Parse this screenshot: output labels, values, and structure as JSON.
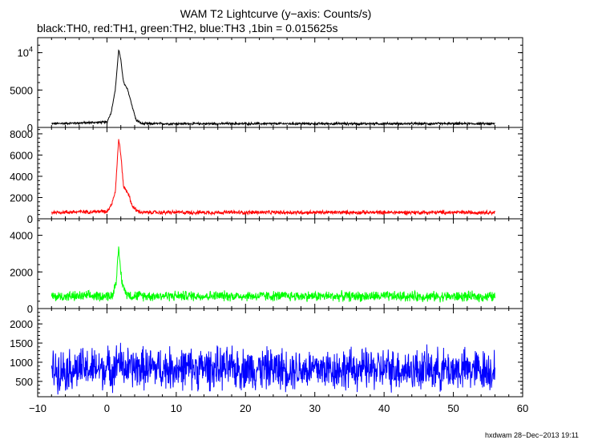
{
  "title": "WAM T2 Lightcurve (y−axis: Counts/s)",
  "subtitle": "black:TH0, red:TH1, green:TH2, blue:TH3 ,1bin = 0.015625s",
  "footer": "hxdwam 28−Dec−2013 19:11",
  "chart_data": [
    {
      "type": "line",
      "series": [
        {
          "name": "TH0",
          "color": "#000000"
        }
      ],
      "xlim": [
        -10,
        60
      ],
      "ylim": [
        0,
        12000
      ],
      "x_ticks": [
        "−10",
        "0",
        "10",
        "20",
        "30",
        "40",
        "50",
        "60"
      ],
      "y_ticks": [
        "0",
        "5000",
        "10⁴"
      ],
      "y_tick_values": [
        0,
        5000,
        10000
      ],
      "profile": [
        [
          -8,
          500
        ],
        [
          0,
          700
        ],
        [
          0.6,
          2000
        ],
        [
          1.2,
          5000
        ],
        [
          1.7,
          10500
        ],
        [
          2.0,
          9000
        ],
        [
          2.4,
          6000
        ],
        [
          3.0,
          5000
        ],
        [
          3.6,
          3000
        ],
        [
          4.2,
          1000
        ],
        [
          5,
          500
        ],
        [
          56,
          500
        ]
      ]
    },
    {
      "type": "line",
      "series": [
        {
          "name": "TH1",
          "color": "#ff0000"
        }
      ],
      "xlim": [
        -10,
        60
      ],
      "ylim": [
        0,
        8600
      ],
      "x_ticks": [
        "−10",
        "0",
        "10",
        "20",
        "30",
        "40",
        "50",
        "60"
      ],
      "y_ticks": [
        "0",
        "2000",
        "4000",
        "6000",
        "8000"
      ],
      "y_tick_values": [
        0,
        2000,
        4000,
        6000,
        8000
      ],
      "profile": [
        [
          -8,
          600
        ],
        [
          0,
          700
        ],
        [
          0.6,
          1300
        ],
        [
          1.2,
          2500
        ],
        [
          1.7,
          7600
        ],
        [
          2.0,
          6000
        ],
        [
          2.4,
          3000
        ],
        [
          3.0,
          2500
        ],
        [
          3.6,
          1300
        ],
        [
          4.2,
          800
        ],
        [
          5,
          600
        ],
        [
          56,
          600
        ]
      ]
    },
    {
      "type": "line",
      "series": [
        {
          "name": "TH2",
          "color": "#00ff00"
        }
      ],
      "xlim": [
        -10,
        60
      ],
      "ylim": [
        0,
        4900
      ],
      "x_ticks": [
        "−10",
        "0",
        "10",
        "20",
        "30",
        "40",
        "50",
        "60"
      ],
      "y_ticks": [
        "0",
        "2000",
        "4000"
      ],
      "y_tick_values": [
        0,
        2000,
        4000
      ],
      "profile": [
        [
          -8,
          650
        ],
        [
          0.8,
          700
        ],
        [
          1.3,
          1500
        ],
        [
          1.7,
          3200
        ],
        [
          2.1,
          1600
        ],
        [
          2.6,
          900
        ],
        [
          3.5,
          700
        ],
        [
          56,
          650
        ]
      ]
    },
    {
      "type": "line",
      "series": [
        {
          "name": "TH3",
          "color": "#0000ff"
        }
      ],
      "xlim": [
        -10,
        60
      ],
      "ylim": [
        100,
        2400
      ],
      "x_ticks": [
        "−10",
        "0",
        "10",
        "20",
        "30",
        "40",
        "50",
        "60"
      ],
      "y_ticks": [
        "500",
        "1000",
        "1500",
        "2000"
      ],
      "y_tick_values": [
        500,
        1000,
        1500,
        2000
      ],
      "profile": [
        [
          -8,
          800
        ],
        [
          1.2,
          850
        ],
        [
          1.7,
          1100
        ],
        [
          2.2,
          850
        ],
        [
          56,
          800
        ]
      ]
    }
  ]
}
